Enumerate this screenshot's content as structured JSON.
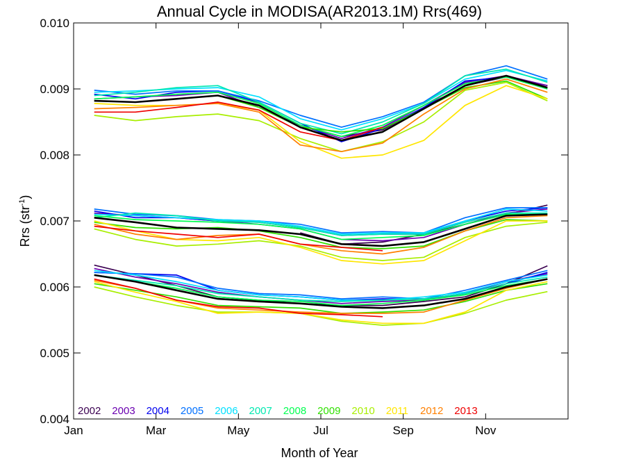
{
  "chart_data": {
    "type": "line",
    "title": "Annual Cycle in MODISA(AR2013.1M) Rrs(469)",
    "xlabel": "Month of Year",
    "ylabel": "Rrs (str",
    "ylabel_sup": "-1",
    "ylabel_end": ")",
    "xlim": [
      0,
      12
    ],
    "ylim": [
      0.004,
      0.01
    ],
    "x_ticks": [
      {
        "value": 0,
        "label": "Jan"
      },
      {
        "value": 2,
        "label": "Mar"
      },
      {
        "value": 4,
        "label": "May"
      },
      {
        "value": 6,
        "label": "Jul"
      },
      {
        "value": 8,
        "label": "Sep"
      },
      {
        "value": 10,
        "label": "Nov"
      }
    ],
    "y_ticks": [
      {
        "value": 0.004,
        "label": "0.004"
      },
      {
        "value": 0.005,
        "label": "0.005"
      },
      {
        "value": 0.006,
        "label": "0.006"
      },
      {
        "value": 0.007,
        "label": "0.007"
      },
      {
        "value": 0.008,
        "label": "0.008"
      },
      {
        "value": 0.009,
        "label": "0.009"
      },
      {
        "value": 0.01,
        "label": "0.010"
      }
    ],
    "legend_position": "bottom-left",
    "groups": [
      "upper",
      "middle",
      "lower"
    ],
    "x": [
      0.5,
      1.5,
      2.5,
      3.5,
      4.5,
      5.5,
      6.5,
      7.5,
      8.5,
      9.5,
      10.5,
      11.5
    ],
    "series": [
      {
        "name": "2002",
        "color": "#3a0050",
        "values": {
          "upper": [
            null,
            null,
            null,
            null,
            null,
            8.45,
            8.28,
            8.38,
            8.72,
            9.05,
            9.18,
            9.05
          ],
          "middle": [
            null,
            null,
            null,
            null,
            null,
            6.82,
            6.65,
            6.68,
            6.8,
            6.95,
            7.1,
            7.24
          ],
          "lower": [
            6.33,
            6.18,
            6.02,
            5.85,
            5.8,
            5.75,
            5.72,
            5.72,
            5.78,
            5.85,
            6.05,
            6.32
          ]
        }
      },
      {
        "name": "2003",
        "color": "#6a00b0",
        "values": {
          "upper": [
            8.85,
            8.88,
            8.9,
            8.95,
            8.72,
            8.45,
            8.25,
            8.42,
            8.75,
            9.1,
            9.2,
            9.05
          ],
          "middle": [
            7.12,
            7.08,
            7.05,
            7.0,
            6.95,
            6.88,
            6.72,
            6.7,
            6.75,
            6.95,
            7.12,
            7.18
          ],
          "lower": [
            6.28,
            6.15,
            6.05,
            5.92,
            5.85,
            5.8,
            5.75,
            5.78,
            5.8,
            5.9,
            6.08,
            6.2
          ]
        }
      },
      {
        "name": "2004",
        "color": "#0000ee",
        "values": {
          "upper": [
            8.92,
            8.85,
            8.95,
            8.97,
            8.8,
            8.48,
            8.2,
            8.4,
            8.72,
            9.12,
            9.18,
            9.02
          ],
          "middle": [
            7.15,
            7.05,
            7.05,
            7.0,
            6.98,
            6.9,
            6.78,
            6.8,
            6.8,
            7.0,
            7.15,
            7.2
          ],
          "lower": [
            6.22,
            6.2,
            6.18,
            5.95,
            5.88,
            5.85,
            5.8,
            5.82,
            5.82,
            5.9,
            6.05,
            6.22
          ]
        }
      },
      {
        "name": "2005",
        "color": "#0070ff",
        "values": {
          "upper": [
            8.98,
            8.92,
            8.97,
            8.97,
            8.82,
            8.6,
            8.42,
            8.58,
            8.8,
            9.2,
            9.35,
            9.15
          ],
          "middle": [
            7.18,
            7.1,
            7.08,
            7.02,
            7.0,
            6.95,
            6.82,
            6.84,
            6.82,
            7.05,
            7.2,
            7.2
          ],
          "lower": [
            6.22,
            6.2,
            6.15,
            5.98,
            5.9,
            5.88,
            5.82,
            5.85,
            5.82,
            5.95,
            6.1,
            6.25
          ]
        }
      },
      {
        "name": "2006",
        "color": "#00e0ff",
        "values": {
          "upper": [
            8.95,
            8.97,
            9.0,
            9.02,
            8.88,
            8.55,
            8.38,
            8.55,
            8.78,
            9.15,
            9.28,
            9.12
          ],
          "middle": [
            7.1,
            7.08,
            7.05,
            7.02,
            7.0,
            6.92,
            6.8,
            6.82,
            6.82,
            7.0,
            7.18,
            7.15
          ],
          "lower": [
            6.25,
            6.18,
            6.08,
            5.95,
            5.88,
            5.85,
            5.8,
            5.8,
            5.85,
            5.92,
            6.08,
            6.18
          ]
        }
      },
      {
        "name": "2007",
        "color": "#00e8b0",
        "values": {
          "upper": [
            8.9,
            8.95,
            9.02,
            9.05,
            8.8,
            8.48,
            8.32,
            8.5,
            8.78,
            9.2,
            9.3,
            9.1
          ],
          "middle": [
            7.05,
            7.12,
            7.08,
            7.0,
            6.98,
            6.9,
            6.78,
            6.8,
            6.8,
            6.98,
            7.12,
            7.12
          ],
          "lower": [
            6.18,
            6.1,
            6.02,
            5.9,
            5.85,
            5.8,
            5.78,
            5.8,
            5.82,
            5.9,
            6.05,
            6.15
          ]
        }
      },
      {
        "name": "2008",
        "color": "#00ff50",
        "values": {
          "upper": [
            8.85,
            8.88,
            8.92,
            8.95,
            8.78,
            8.45,
            8.28,
            8.45,
            8.75,
            9.08,
            9.18,
            9.0
          ],
          "middle": [
            7.08,
            7.02,
            7.0,
            6.98,
            6.95,
            6.88,
            6.72,
            6.75,
            6.78,
            6.95,
            7.1,
            7.1
          ],
          "lower": [
            6.18,
            6.08,
            5.98,
            5.85,
            5.8,
            5.78,
            5.72,
            5.75,
            5.8,
            5.88,
            6.02,
            6.12
          ]
        }
      },
      {
        "name": "2009",
        "color": "#30e000",
        "values": {
          "upper": [
            8.82,
            8.8,
            8.85,
            8.9,
            8.72,
            8.42,
            8.35,
            8.4,
            8.7,
            9.02,
            9.12,
            8.85
          ],
          "middle": [
            6.98,
            6.9,
            6.88,
            6.9,
            6.85,
            6.75,
            6.6,
            6.58,
            6.62,
            6.85,
            7.02,
            7.0
          ],
          "lower": [
            6.05,
            5.95,
            5.85,
            5.72,
            5.7,
            5.68,
            5.6,
            5.62,
            5.65,
            5.78,
            5.95,
            6.05
          ]
        }
      },
      {
        "name": "2010",
        "color": "#a8ee00",
        "values": {
          "upper": [
            8.6,
            8.52,
            8.58,
            8.62,
            8.52,
            8.25,
            8.05,
            8.2,
            8.5,
            8.98,
            9.1,
            8.82
          ],
          "middle": [
            6.88,
            6.72,
            6.62,
            6.65,
            6.7,
            6.62,
            6.45,
            6.4,
            6.45,
            6.75,
            6.92,
            6.98
          ],
          "lower": [
            6.0,
            5.85,
            5.72,
            5.62,
            5.62,
            5.6,
            5.48,
            5.42,
            5.45,
            5.6,
            5.8,
            5.93
          ]
        }
      },
      {
        "name": "2011",
        "color": "#ffe600",
        "values": {
          "upper": [
            8.78,
            8.75,
            8.75,
            8.78,
            8.68,
            8.2,
            7.95,
            8.0,
            8.22,
            8.75,
            9.05,
            8.85
          ],
          "middle": [
            7.0,
            6.85,
            6.72,
            6.7,
            6.75,
            6.6,
            6.4,
            6.35,
            6.4,
            6.7,
            7.0,
            7.0
          ],
          "lower": [
            6.08,
            5.92,
            5.78,
            5.6,
            5.62,
            5.6,
            5.5,
            5.45,
            5.45,
            5.62,
            5.95,
            6.08
          ]
        }
      },
      {
        "name": "2012",
        "color": "#ff8000",
        "values": {
          "upper": [
            8.7,
            8.72,
            8.75,
            8.78,
            8.65,
            8.15,
            8.05,
            8.18,
            8.62,
            9.0,
            9.15,
            8.95
          ],
          "middle": [
            6.95,
            6.8,
            6.72,
            6.78,
            6.8,
            6.65,
            6.55,
            6.5,
            6.6,
            6.85,
            7.05,
            7.08
          ],
          "lower": [
            6.1,
            5.98,
            5.8,
            5.68,
            5.65,
            5.62,
            5.6,
            5.6,
            5.62,
            5.8,
            5.98,
            6.12
          ]
        }
      },
      {
        "name": "2013",
        "color": "#ee0000",
        "values": {
          "upper": [
            8.65,
            8.65,
            8.72,
            8.8,
            8.68,
            8.35,
            8.22,
            8.42,
            null,
            null,
            null,
            null
          ],
          "middle": [
            6.92,
            6.85,
            6.8,
            6.75,
            6.8,
            6.65,
            6.6,
            6.55,
            null,
            null,
            null,
            null
          ],
          "lower": [
            6.12,
            5.98,
            5.8,
            5.7,
            5.68,
            5.6,
            5.58,
            5.55,
            null,
            null,
            null,
            null
          ]
        }
      },
      {
        "name": "",
        "color": "#000000",
        "mean": true,
        "values": {
          "upper": [
            8.82,
            8.8,
            8.85,
            8.9,
            8.75,
            8.42,
            8.22,
            8.35,
            8.7,
            9.05,
            9.2,
            9.02
          ],
          "middle": [
            7.05,
            6.98,
            6.9,
            6.88,
            6.86,
            6.8,
            6.65,
            6.62,
            6.68,
            6.88,
            7.08,
            7.1
          ],
          "lower": [
            6.18,
            6.08,
            5.95,
            5.82,
            5.78,
            5.75,
            5.7,
            5.68,
            5.72,
            5.82,
            6.0,
            6.12
          ]
        }
      }
    ],
    "y_scale": 0.001
  }
}
